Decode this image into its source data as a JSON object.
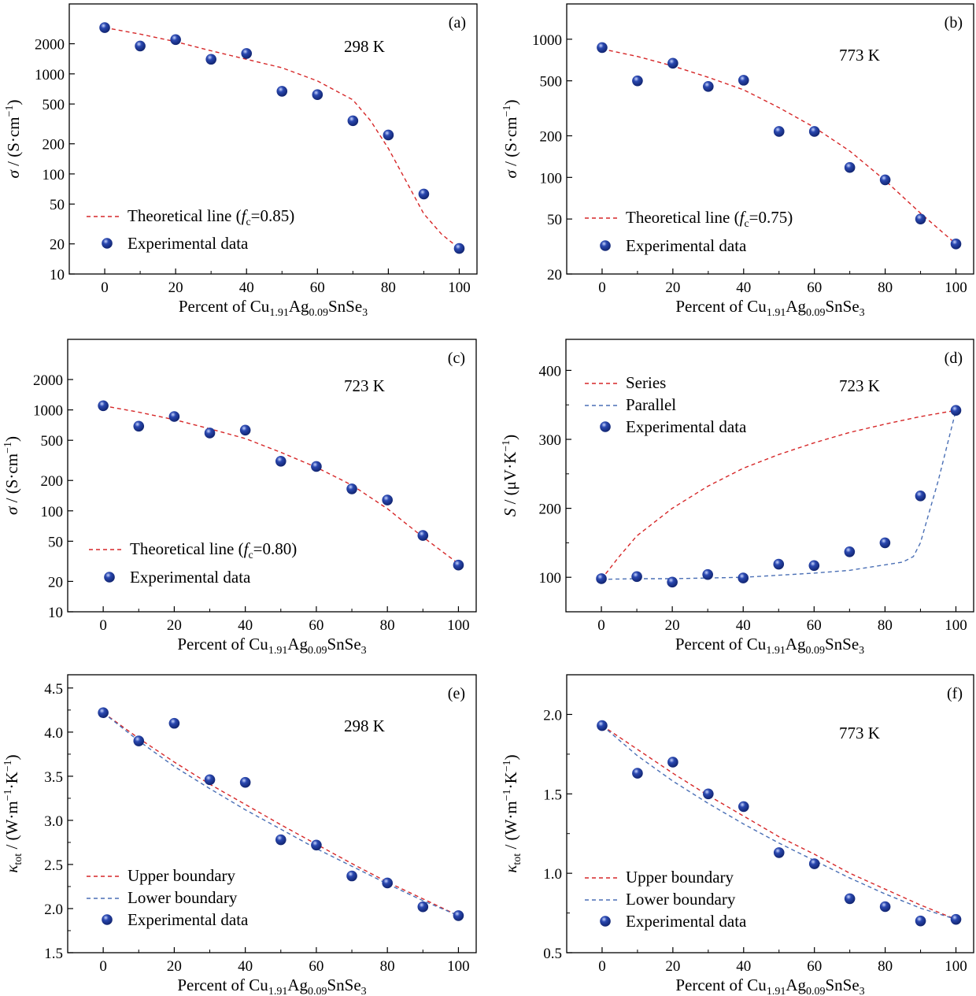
{
  "colors": {
    "series_red": "#d62728",
    "series_blue": "#4a6fb5",
    "marker_dark": "#10236e",
    "marker_mid": "#2a48b0",
    "marker_light": "#c9d6ff"
  },
  "chart_data": [
    {
      "id": "a",
      "type": "line+scatter",
      "panel_label": "(a)",
      "temperature_label": "298 K",
      "yscale": "log",
      "ylim": [
        10,
        5000
      ],
      "yticks": [
        10,
        20,
        50,
        100,
        200,
        500,
        1000,
        2000
      ],
      "ytick_labels": [
        "10",
        "20",
        "50",
        "100",
        "200",
        "500",
        "1000",
        "2000"
      ],
      "xlim": [
        -10,
        105
      ],
      "xticks": [
        0,
        20,
        40,
        60,
        80,
        100
      ],
      "xtick_labels": [
        "0",
        "20",
        "40",
        "60",
        "80",
        "100"
      ],
      "ylabel": {
        "sym": "σ",
        "rest": " / (S·cm",
        "sup": "−1",
        "close": ")"
      },
      "xlabel": {
        "pre": "Percent of Cu",
        "s1": "1.91",
        "mid": "Ag",
        "s2": "0.09",
        "post": "SnSe",
        "s3": "3"
      },
      "legend": [
        {
          "kind": "dash",
          "color": "red",
          "parts": [
            {
              "t": "Theoretical line ("
            },
            {
              "t": "f",
              "i": true
            },
            {
              "t": "c",
              "sub": true
            },
            {
              "t": "=0.85)"
            }
          ]
        },
        {
          "kind": "marker",
          "parts": [
            {
              "t": "Experimental data"
            }
          ]
        }
      ],
      "series": [
        {
          "kind": "line",
          "color": "red",
          "x": [
            0,
            10,
            20,
            30,
            40,
            50,
            60,
            70,
            75,
            80,
            85,
            90,
            95,
            100
          ],
          "y": [
            2900,
            2500,
            2100,
            1700,
            1400,
            1150,
            850,
            550,
            340,
            180,
            85,
            40,
            25,
            18
          ]
        },
        {
          "kind": "scatter",
          "name": "Experimental data",
          "x": [
            0,
            10,
            20,
            30,
            40,
            50,
            60,
            70,
            80,
            90,
            100
          ],
          "y": [
            2900,
            1900,
            2200,
            1400,
            1600,
            670,
            620,
            340,
            245,
            63,
            18
          ]
        }
      ]
    },
    {
      "id": "b",
      "type": "line+scatter",
      "panel_label": "(b)",
      "temperature_label": "773 K",
      "yscale": "log",
      "ylim": [
        20,
        1800
      ],
      "yticks": [
        20,
        50,
        100,
        200,
        500,
        1000
      ],
      "ytick_labels": [
        "20",
        "50",
        "100",
        "200",
        "500",
        "1000"
      ],
      "xlim": [
        -10,
        105
      ],
      "xticks": [
        0,
        20,
        40,
        60,
        80,
        100
      ],
      "xtick_labels": [
        "0",
        "20",
        "40",
        "60",
        "80",
        "100"
      ],
      "ylabel": {
        "sym": "σ",
        "rest": " / (S·cm",
        "sup": "−1",
        "close": ")"
      },
      "xlabel": {
        "pre": "Percent of Cu",
        "s1": "1.91",
        "mid": "Ag",
        "s2": "0.09",
        "post": "SnSe",
        "s3": "3"
      },
      "legend": [
        {
          "kind": "dash",
          "color": "red",
          "parts": [
            {
              "t": "Theoretical line ("
            },
            {
              "t": "f",
              "i": true
            },
            {
              "t": "c",
              "sub": true
            },
            {
              "t": "=0.75)"
            }
          ]
        },
        {
          "kind": "marker",
          "parts": [
            {
              "t": "Experimental data"
            }
          ]
        }
      ],
      "series": [
        {
          "kind": "line",
          "color": "red",
          "x": [
            0,
            10,
            20,
            30,
            40,
            50,
            60,
            70,
            80,
            90,
            100
          ],
          "y": [
            850,
            750,
            640,
            530,
            430,
            320,
            230,
            155,
            95,
            55,
            33
          ]
        },
        {
          "kind": "scatter",
          "name": "Experimental data",
          "x": [
            0,
            10,
            20,
            30,
            40,
            50,
            60,
            70,
            80,
            90,
            100
          ],
          "y": [
            870,
            500,
            670,
            455,
            505,
            215,
            215,
            118,
            96,
            50,
            33
          ]
        }
      ]
    },
    {
      "id": "c",
      "type": "line+scatter",
      "panel_label": "(c)",
      "temperature_label": "723 K",
      "yscale": "log",
      "ylim": [
        10,
        5000
      ],
      "yticks": [
        10,
        20,
        50,
        100,
        200,
        500,
        1000,
        2000
      ],
      "ytick_labels": [
        "10",
        "20",
        "50",
        "100",
        "200",
        "500",
        "1000",
        "2000"
      ],
      "xlim": [
        -10,
        105
      ],
      "xticks": [
        0,
        20,
        40,
        60,
        80,
        100
      ],
      "xtick_labels": [
        "0",
        "20",
        "40",
        "60",
        "80",
        "100"
      ],
      "ylabel": {
        "sym": "σ",
        "rest": " / (S·cm",
        "sup": "−1",
        "close": ")"
      },
      "xlabel": {
        "pre": "Percent of Cu",
        "s1": "1.91",
        "mid": "Ag",
        "s2": "0.09",
        "post": "SnSe",
        "s3": "3"
      },
      "legend": [
        {
          "kind": "dash",
          "color": "red",
          "parts": [
            {
              "t": "Theoretical line ("
            },
            {
              "t": "f",
              "i": true
            },
            {
              "t": "c",
              "sub": true
            },
            {
              "t": "=0.80)"
            }
          ]
        },
        {
          "kind": "marker",
          "parts": [
            {
              "t": "Experimental data"
            }
          ]
        }
      ],
      "series": [
        {
          "kind": "line",
          "color": "red",
          "x": [
            0,
            10,
            20,
            30,
            40,
            50,
            60,
            70,
            80,
            90,
            100
          ],
          "y": [
            1100,
            950,
            800,
            650,
            520,
            380,
            270,
            180,
            105,
            55,
            30
          ]
        },
        {
          "kind": "scatter",
          "name": "Experimental data",
          "x": [
            0,
            10,
            20,
            30,
            40,
            50,
            60,
            70,
            80,
            90,
            100
          ],
          "y": [
            1100,
            690,
            860,
            590,
            630,
            310,
            275,
            165,
            128,
            57,
            29
          ]
        }
      ]
    },
    {
      "id": "d",
      "type": "line+scatter",
      "panel_label": "(d)",
      "temperature_label": "723 K",
      "yscale": "linear",
      "ylim": [
        50,
        445
      ],
      "yticks": [
        100,
        200,
        300,
        400
      ],
      "ytick_labels": [
        "100",
        "200",
        "300",
        "400"
      ],
      "xlim": [
        -10,
        105
      ],
      "xticks": [
        0,
        20,
        40,
        60,
        80,
        100
      ],
      "xtick_labels": [
        "0",
        "20",
        "40",
        "60",
        "80",
        "100"
      ],
      "ylabel": {
        "sym": "S",
        "rest": " / (μV·K",
        "sup": "−1",
        "close": ")"
      },
      "xlabel": {
        "pre": "Percent of Cu",
        "s1": "1.91",
        "mid": "Ag",
        "s2": "0.09",
        "post": "SnSe",
        "s3": "3"
      },
      "legend": [
        {
          "kind": "dash",
          "color": "red",
          "parts": [
            {
              "t": "Series"
            }
          ]
        },
        {
          "kind": "dash",
          "color": "blue",
          "parts": [
            {
              "t": "Parallel"
            }
          ]
        },
        {
          "kind": "marker",
          "parts": [
            {
              "t": "Experimental data"
            }
          ]
        }
      ],
      "series": [
        {
          "kind": "line",
          "name": "Series",
          "color": "red",
          "x": [
            0,
            5,
            10,
            20,
            30,
            40,
            50,
            60,
            70,
            80,
            90,
            100
          ],
          "y": [
            97,
            130,
            160,
            200,
            232,
            258,
            278,
            295,
            310,
            322,
            333,
            342
          ]
        },
        {
          "kind": "line",
          "name": "Parallel",
          "color": "blue",
          "x": [
            0,
            10,
            20,
            30,
            40,
            50,
            60,
            70,
            80,
            85,
            88,
            90,
            95,
            100
          ],
          "y": [
            97,
            98,
            98,
            99,
            100,
            103,
            106,
            110,
            118,
            122,
            130,
            150,
            240,
            342
          ]
        },
        {
          "kind": "scatter",
          "name": "Experimental data",
          "x": [
            0,
            10,
            20,
            30,
            40,
            50,
            60,
            70,
            80,
            90,
            100
          ],
          "y": [
            98,
            101,
            93,
            104,
            99,
            119,
            117,
            137,
            150,
            218,
            342
          ]
        }
      ]
    },
    {
      "id": "e",
      "type": "line+scatter",
      "panel_label": "(e)",
      "temperature_label": "298 K",
      "yscale": "linear",
      "ylim": [
        1.5,
        4.65
      ],
      "yticks": [
        1.5,
        2.0,
        2.5,
        3.0,
        3.5,
        4.0,
        4.5
      ],
      "ytick_labels": [
        "1.5",
        "2.0",
        "2.5",
        "3.0",
        "3.5",
        "4.0",
        "4.5"
      ],
      "xlim": [
        -10,
        105
      ],
      "xticks": [
        0,
        20,
        40,
        60,
        80,
        100
      ],
      "xtick_labels": [
        "0",
        "20",
        "40",
        "60",
        "80",
        "100"
      ],
      "ylabel": {
        "sym": "κ",
        "sub": "tot",
        "rest": " / (W·m",
        "sup1": "−1",
        "mid": "·K",
        "sup": "−1",
        "close": ")"
      },
      "xlabel": {
        "pre": "Percent of Cu",
        "s1": "1.91",
        "mid": "Ag",
        "s2": "0.09",
        "post": "SnSe",
        "s3": "3"
      },
      "legend": [
        {
          "kind": "dash",
          "color": "red",
          "parts": [
            {
              "t": "Upper boundary"
            }
          ]
        },
        {
          "kind": "dash",
          "color": "blue",
          "parts": [
            {
              "t": "Lower boundary"
            }
          ]
        },
        {
          "kind": "marker",
          "parts": [
            {
              "t": "Experimental data"
            }
          ]
        }
      ],
      "series": [
        {
          "kind": "line",
          "name": "Upper boundary",
          "color": "red",
          "x": [
            0,
            10,
            20,
            30,
            40,
            50,
            60,
            70,
            80,
            90,
            100
          ],
          "y": [
            4.22,
            3.93,
            3.66,
            3.41,
            3.18,
            2.95,
            2.73,
            2.51,
            2.3,
            2.11,
            1.92
          ]
        },
        {
          "kind": "line",
          "name": "Lower boundary",
          "color": "blue",
          "x": [
            0,
            10,
            20,
            30,
            40,
            50,
            60,
            70,
            80,
            90,
            100
          ],
          "y": [
            4.22,
            3.9,
            3.61,
            3.36,
            3.12,
            2.9,
            2.68,
            2.48,
            2.28,
            2.09,
            1.92
          ]
        },
        {
          "kind": "scatter",
          "name": "Experimental data",
          "x": [
            0,
            10,
            20,
            30,
            40,
            50,
            60,
            70,
            80,
            90,
            100
          ],
          "y": [
            4.22,
            3.9,
            4.1,
            3.46,
            3.43,
            2.78,
            2.72,
            2.37,
            2.29,
            2.02,
            1.92
          ]
        }
      ]
    },
    {
      "id": "f",
      "type": "line+scatter",
      "panel_label": "(f)",
      "temperature_label": "773 K",
      "yscale": "linear",
      "ylim": [
        0.5,
        2.25
      ],
      "yticks": [
        0.5,
        1.0,
        1.5,
        2.0
      ],
      "ytick_labels": [
        "0.5",
        "1.0",
        "1.5",
        "2.0"
      ],
      "xlim": [
        -10,
        105
      ],
      "xticks": [
        0,
        20,
        40,
        60,
        80,
        100
      ],
      "xtick_labels": [
        "0",
        "20",
        "40",
        "60",
        "80",
        "100"
      ],
      "ylabel": {
        "sym": "κ",
        "sub": "tot",
        "rest": " / (W·m",
        "sup1": "−1",
        "mid": "·K",
        "sup": "−1",
        "close": ")"
      },
      "xlabel": {
        "pre": "Percent of Cu",
        "s1": "1.91",
        "mid": "Ag",
        "s2": "0.09",
        "post": "SnSe",
        "s3": "3"
      },
      "legend": [
        {
          "kind": "dash",
          "color": "red",
          "parts": [
            {
              "t": "Upper boundary"
            }
          ]
        },
        {
          "kind": "dash",
          "color": "blue",
          "parts": [
            {
              "t": "Lower boundary"
            }
          ]
        },
        {
          "kind": "marker",
          "parts": [
            {
              "t": "Experimental data"
            }
          ]
        }
      ],
      "series": [
        {
          "kind": "line",
          "name": "Upper boundary",
          "color": "red",
          "x": [
            0,
            10,
            20,
            30,
            40,
            50,
            60,
            70,
            80,
            90,
            100
          ],
          "y": [
            1.93,
            1.78,
            1.63,
            1.49,
            1.36,
            1.23,
            1.12,
            1.0,
            0.9,
            0.8,
            0.71
          ]
        },
        {
          "kind": "line",
          "name": "Lower boundary",
          "color": "blue",
          "x": [
            0,
            10,
            20,
            30,
            40,
            50,
            60,
            70,
            80,
            90,
            100
          ],
          "y": [
            1.93,
            1.74,
            1.58,
            1.44,
            1.31,
            1.19,
            1.08,
            0.97,
            0.87,
            0.78,
            0.71
          ]
        },
        {
          "kind": "scatter",
          "name": "Experimental data",
          "x": [
            0,
            10,
            20,
            30,
            40,
            50,
            60,
            70,
            80,
            90,
            100
          ],
          "y": [
            1.93,
            1.63,
            1.7,
            1.5,
            1.42,
            1.13,
            1.06,
            0.84,
            0.79,
            0.7,
            0.71
          ]
        }
      ]
    }
  ]
}
